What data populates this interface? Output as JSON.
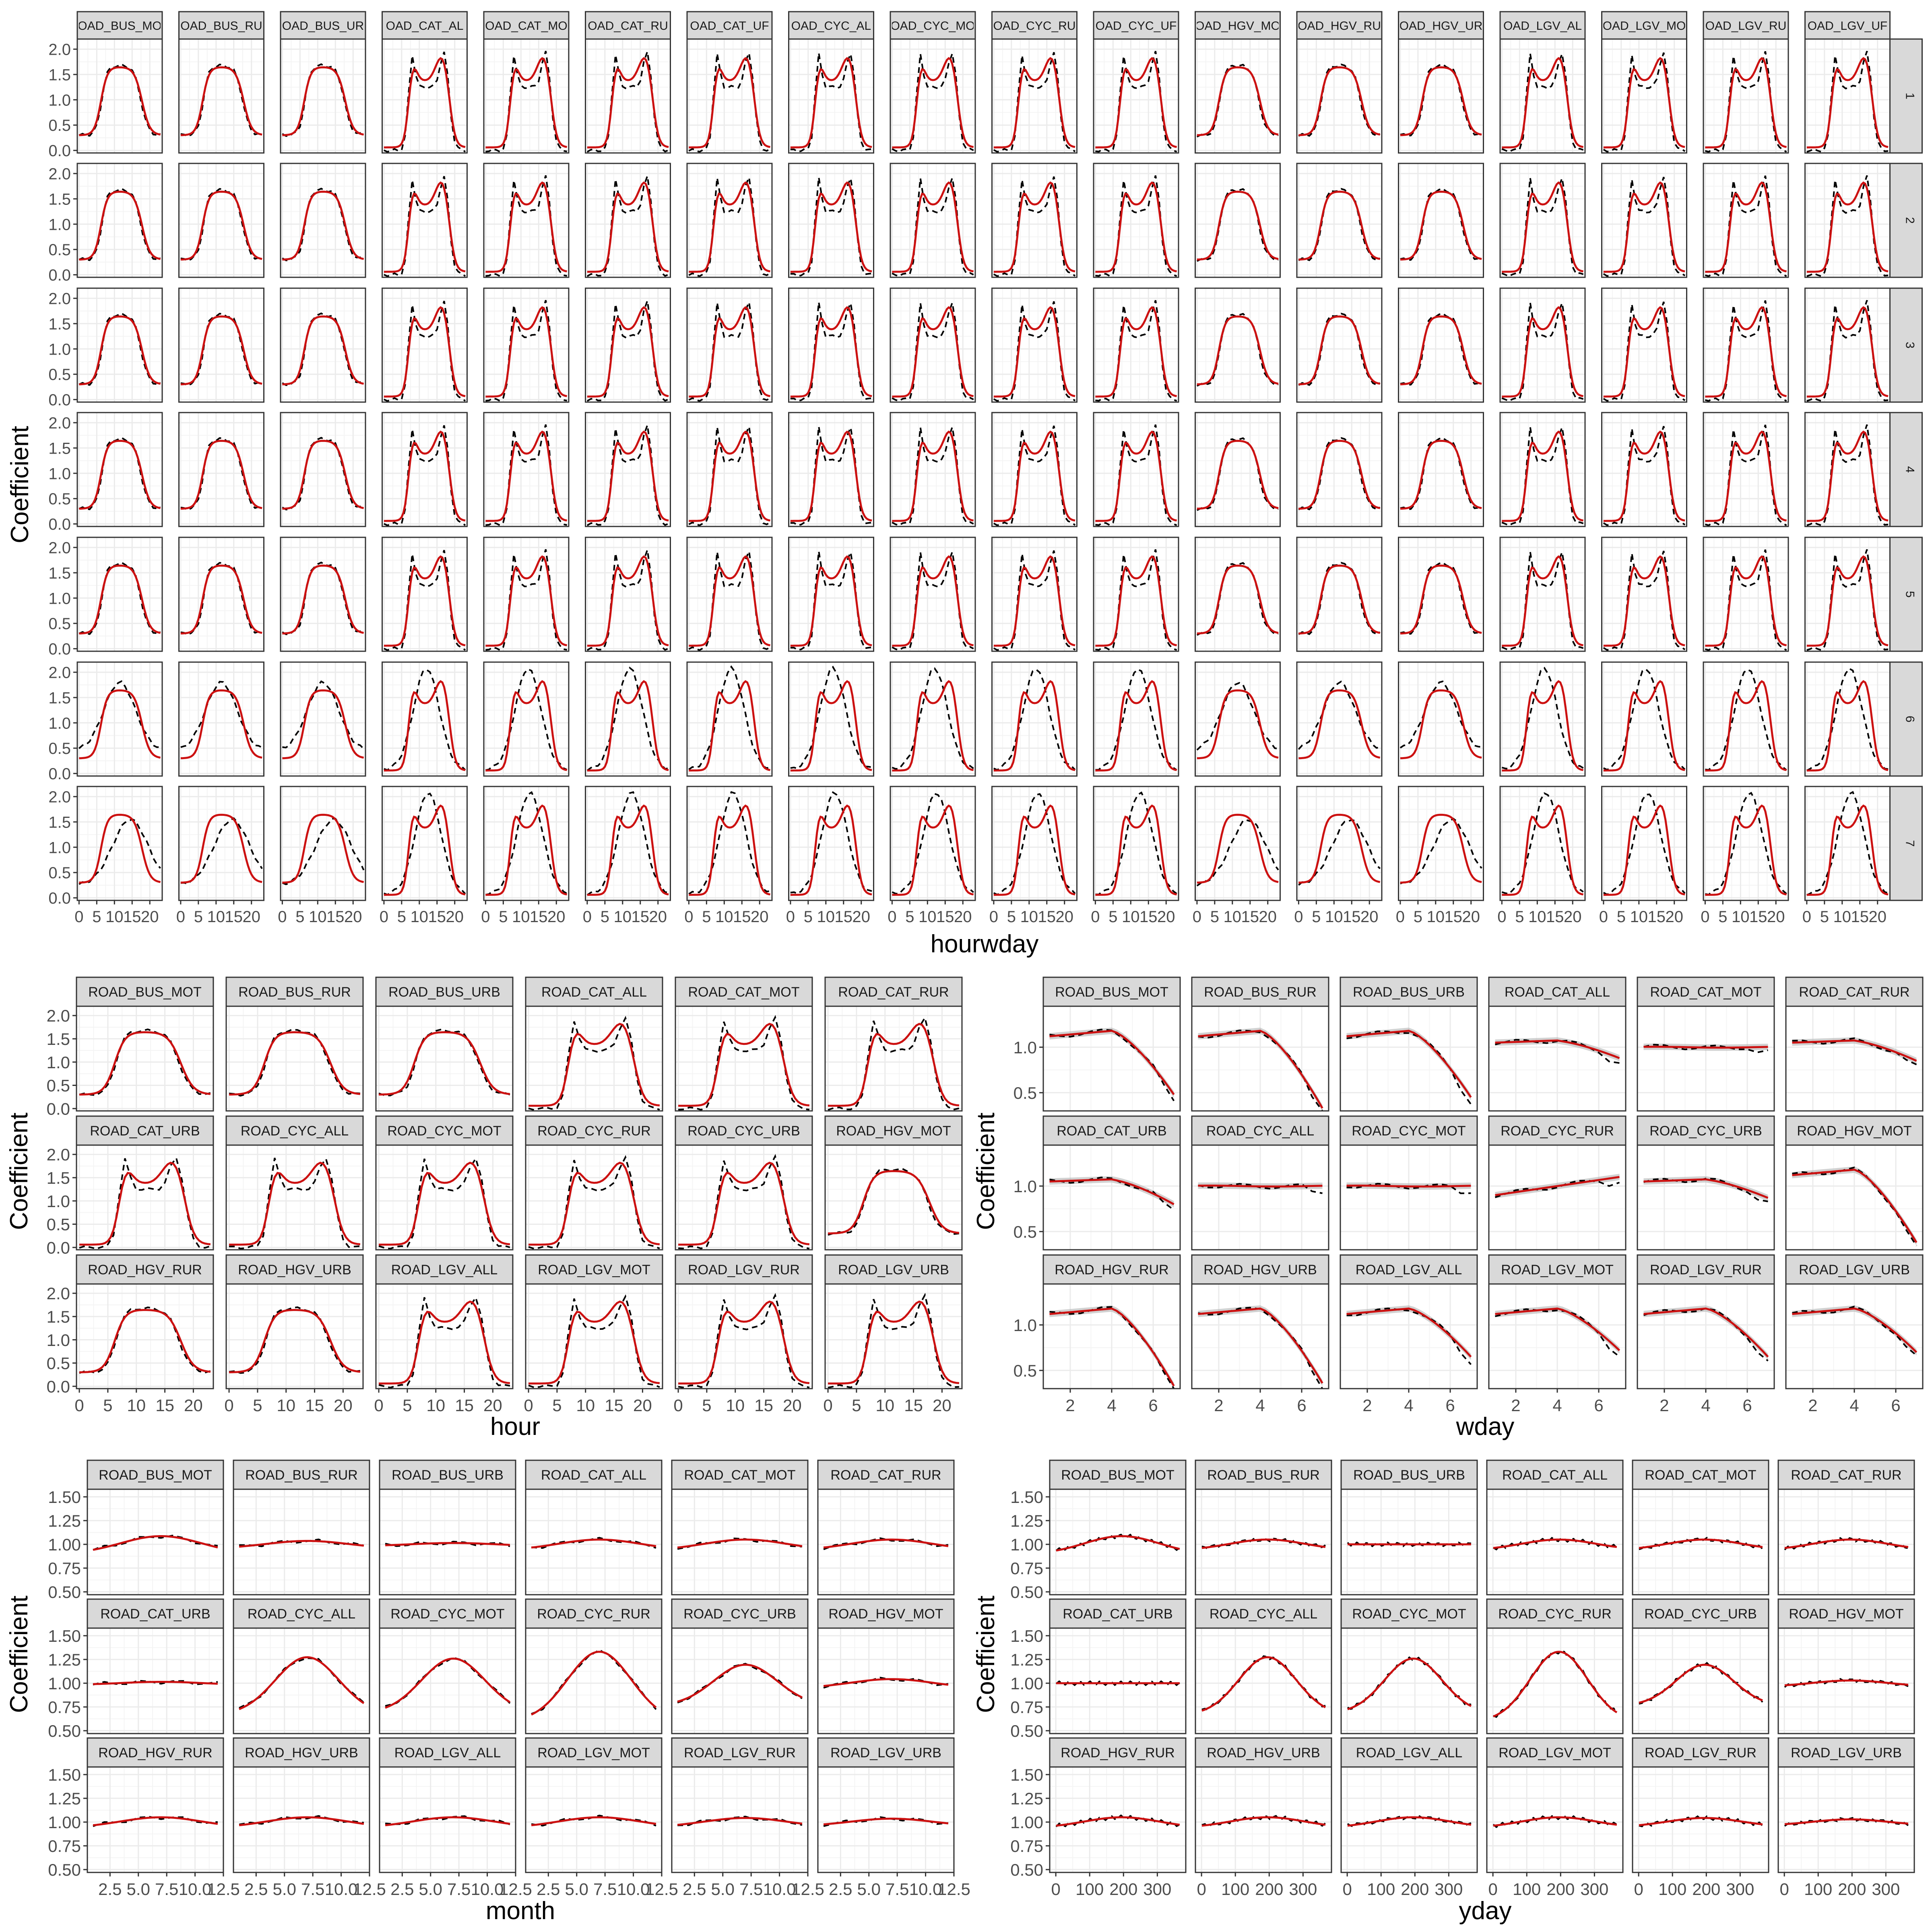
{
  "chart_data": [
    {
      "type": "line",
      "xlabel": "hourwday",
      "ylabel": "Coefficient",
      "panels": [
        "ROAD_BUS_MOT",
        "ROAD_BUS_RUR",
        "ROAD_BUS_URB",
        "ROAD_CAT_ALL",
        "ROAD_CAT_MOT",
        "ROAD_CAT_RUR",
        "ROAD_CAT_URB",
        "ROAD_CYC_ALL",
        "ROAD_CYC_MOT",
        "ROAD_CYC_RUR",
        "ROAD_CYC_URB",
        "ROAD_HGV_MOT",
        "ROAD_HGV_RUR",
        "ROAD_HGV_URB",
        "ROAD_LGV_ALL",
        "ROAD_LGV_MOT",
        "ROAD_LGV_RUR",
        "ROAD_LGV_URB"
      ],
      "panels_displayed": [
        "OAD_BUS_MO",
        "OAD_BUS_RU",
        "OAD_BUS_UR",
        "OAD_CAT_AL",
        "OAD_CAT_MO",
        "OAD_CAT_RU",
        "OAD_CAT_UF",
        "OAD_CYC_AL",
        "OAD_CYC_MO",
        "OAD_CYC_RU",
        "OAD_CYC_UF",
        "OAD_HGV_MO",
        "OAD_HGV_RU",
        "OAD_HGV_UR",
        "OAD_LGV_AL",
        "OAD_LGV_MO",
        "OAD_LGV_RU",
        "OAD_LGV_UF"
      ],
      "rows": [
        "1",
        "2",
        "3",
        "4",
        "5",
        "6",
        "7"
      ],
      "xlim": [
        -0.5,
        23.5
      ],
      "xticks": [
        0,
        5,
        10,
        15,
        20
      ],
      "ylim": [
        -0.05,
        2.2
      ],
      "yticks": [
        0.0,
        0.5,
        1.0,
        1.5,
        2.0
      ],
      "ytick_labels": [
        "0.0",
        "0.5",
        "1.0",
        "1.5",
        "2.0"
      ],
      "series": [
        {
          "name": "",
          "style": "red solid",
          "color": "#cc1111",
          "values": "smooth fitted daily profile per panel"
        },
        {
          "name": "",
          "style": "black dashed",
          "color": "#000000",
          "values": "observed daily profile per panel"
        }
      ]
    },
    {
      "type": "line",
      "xlabel": "hour",
      "ylabel": "Coefficient",
      "panels": [
        "ROAD_BUS_MOT",
        "ROAD_BUS_RUR",
        "ROAD_BUS_URB",
        "ROAD_CAT_ALL",
        "ROAD_CAT_MOT",
        "ROAD_CAT_RUR",
        "ROAD_CAT_URB",
        "ROAD_CYC_ALL",
        "ROAD_CYC_MOT",
        "ROAD_CYC_RUR",
        "ROAD_CYC_URB",
        "ROAD_HGV_MOT",
        "ROAD_HGV_RUR",
        "ROAD_HGV_URB",
        "ROAD_LGV_ALL",
        "ROAD_LGV_MOT",
        "ROAD_LGV_RUR",
        "ROAD_LGV_URB"
      ],
      "xlim": [
        -0.5,
        23.5
      ],
      "xticks": [
        0,
        5,
        10,
        15,
        20
      ],
      "ylim": [
        -0.05,
        2.2
      ],
      "yticks": [
        0.0,
        0.5,
        1.0,
        1.5,
        2.0
      ],
      "ytick_labels": [
        "0.0",
        "0.5",
        "1.0",
        "1.5",
        "2.0"
      ]
    },
    {
      "type": "line",
      "xlabel": "wday",
      "ylabel": "Coefficient",
      "panels": [
        "ROAD_BUS_MOT",
        "ROAD_BUS_RUR",
        "ROAD_BUS_URB",
        "ROAD_CAT_ALL",
        "ROAD_CAT_MOT",
        "ROAD_CAT_RUR",
        "ROAD_CAT_URB",
        "ROAD_CYC_ALL",
        "ROAD_CYC_MOT",
        "ROAD_CYC_RUR",
        "ROAD_CYC_URB",
        "ROAD_HGV_MOT",
        "ROAD_HGV_RUR",
        "ROAD_HGV_URB",
        "ROAD_LGV_ALL",
        "ROAD_LGV_MOT",
        "ROAD_LGV_RUR",
        "ROAD_LGV_URB"
      ],
      "xlim": [
        0.7,
        7.3
      ],
      "xticks": [
        2,
        4,
        6
      ],
      "ylim": [
        0.3,
        1.45
      ],
      "yticks": [
        0.5,
        1.0
      ],
      "ytick_labels": [
        "0.5",
        "1.0"
      ],
      "end_values": [
        0.48,
        0.33,
        0.45,
        0.88,
        0.98,
        0.85,
        0.8,
        0.98,
        0.95,
        1.1,
        0.87,
        0.38,
        0.33,
        0.36,
        0.65,
        0.72,
        0.65,
        0.7
      ]
    },
    {
      "type": "line",
      "xlabel": "month",
      "ylabel": "Coefficient",
      "panels": [
        "ROAD_BUS_MOT",
        "ROAD_BUS_RUR",
        "ROAD_BUS_URB",
        "ROAD_CAT_ALL",
        "ROAD_CAT_MOT",
        "ROAD_CAT_RUR",
        "ROAD_CAT_URB",
        "ROAD_CYC_ALL",
        "ROAD_CYC_MOT",
        "ROAD_CYC_RUR",
        "ROAD_CYC_URB",
        "ROAD_HGV_MOT",
        "ROAD_HGV_RUR",
        "ROAD_HGV_URB",
        "ROAD_LGV_ALL",
        "ROAD_LGV_MOT",
        "ROAD_LGV_RUR",
        "ROAD_LGV_URB"
      ],
      "xlim": [
        0.5,
        12.5
      ],
      "xticks": [
        2.5,
        5.0,
        7.5,
        10.0,
        12.5
      ],
      "xtick_labels": [
        "2.5",
        "5.0",
        "7.5",
        "10.0",
        "12.5"
      ],
      "ylim": [
        0.47,
        1.58
      ],
      "yticks": [
        0.5,
        0.75,
        1.0,
        1.25,
        1.5
      ],
      "ytick_labels": [
        "0.50",
        "0.75",
        "1.00",
        "1.25",
        "1.50"
      ],
      "amplitudes": [
        0.12,
        0.05,
        0.02,
        0.07,
        0.07,
        0.07,
        0.02,
        0.38,
        0.36,
        0.46,
        0.27,
        0.06,
        0.07,
        0.07,
        0.07,
        0.07,
        0.06,
        0.05
      ]
    },
    {
      "type": "line",
      "xlabel": "yday",
      "ylabel": "Coefficient",
      "panels": [
        "ROAD_BUS_MOT",
        "ROAD_BUS_RUR",
        "ROAD_BUS_URB",
        "ROAD_CAT_ALL",
        "ROAD_CAT_MOT",
        "ROAD_CAT_RUR",
        "ROAD_CAT_URB",
        "ROAD_CYC_ALL",
        "ROAD_CYC_MOT",
        "ROAD_CYC_RUR",
        "ROAD_CYC_URB",
        "ROAD_HGV_MOT",
        "ROAD_HGV_RUR",
        "ROAD_HGV_URB",
        "ROAD_LGV_ALL",
        "ROAD_LGV_MOT",
        "ROAD_LGV_RUR",
        "ROAD_LGV_URB"
      ],
      "xlim": [
        -18,
        384
      ],
      "xticks": [
        0,
        100,
        200,
        300
      ],
      "ylim": [
        0.47,
        1.58
      ],
      "yticks": [
        0.5,
        0.75,
        1.0,
        1.25,
        1.5
      ],
      "ytick_labels": [
        "0.50",
        "0.75",
        "1.00",
        "1.25",
        "1.50"
      ],
      "amplitudes": [
        0.12,
        0.07,
        0.0,
        0.07,
        0.07,
        0.07,
        0.0,
        0.38,
        0.36,
        0.46,
        0.27,
        0.04,
        0.07,
        0.07,
        0.07,
        0.07,
        0.06,
        0.04
      ]
    }
  ],
  "colors": {
    "fit_line": "#cc1111",
    "observed_line": "#000000",
    "ribbon": "#b3b3b3",
    "strip_fill": "#d9d9d9",
    "panel_border": "#333333",
    "grid_major": "#ebebeb",
    "grid_minor": "#f4f4f4",
    "tick_text": "#4d4d4d"
  }
}
